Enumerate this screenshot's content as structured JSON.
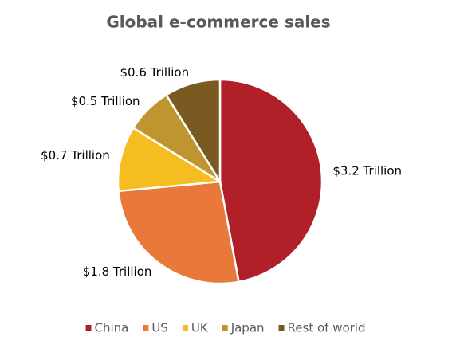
{
  "chart_data": {
    "type": "pie",
    "title": "Global e-commerce sales",
    "categories": [
      "China",
      "US",
      "UK",
      "Japan",
      "Rest of world"
    ],
    "values": [
      3.2,
      1.8,
      0.7,
      0.5,
      0.6
    ],
    "value_labels": [
      "$3.2 Trillion",
      "$1.8 Trillion",
      "$0.7 Trillion",
      "$0.5 Trillion",
      "$0.6 Trillion"
    ],
    "colors": [
      "#b11f29",
      "#e8793a",
      "#f5bd1f",
      "#bf952f",
      "#7b5a22"
    ],
    "legend": "bottom"
  }
}
